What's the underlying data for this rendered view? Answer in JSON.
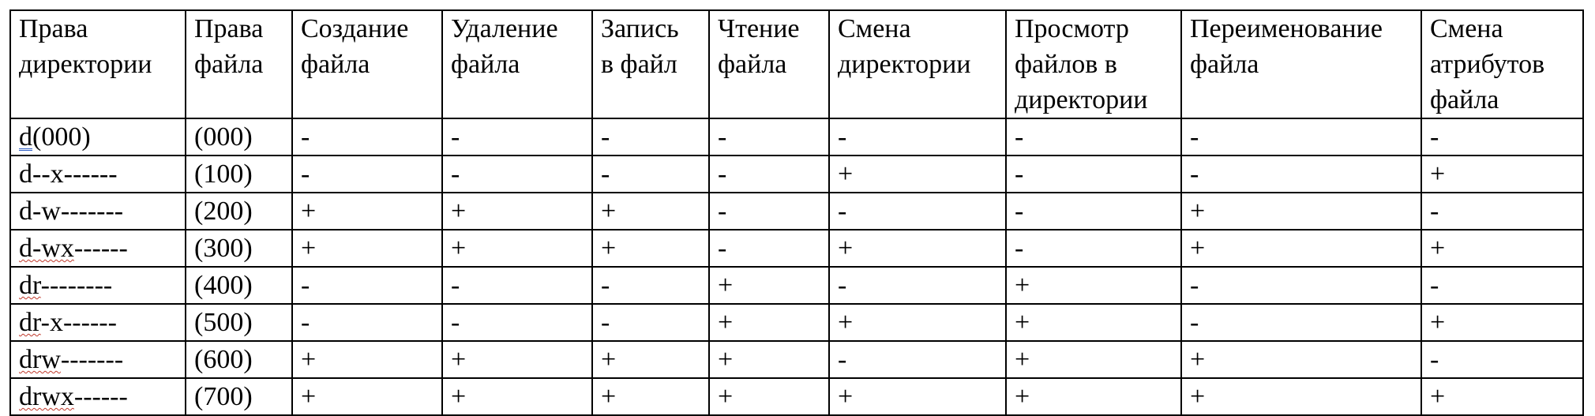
{
  "headers": [
    [
      "Права",
      "директории"
    ],
    [
      "Права",
      "файла"
    ],
    [
      "Создание",
      "файла"
    ],
    [
      "Удаление",
      "файла"
    ],
    [
      "Запись",
      "в файл"
    ],
    [
      "Чтение",
      "файла"
    ],
    [
      "Смена",
      "директории"
    ],
    [
      "Просмотр",
      "файлов в",
      "директории"
    ],
    [
      "Переименование",
      "файла"
    ],
    [
      "Смена",
      "атрибутов",
      "файла"
    ]
  ],
  "rows": [
    {
      "dir_prefix": "d",
      "dir_rest": "(000)",
      "file": "(000)",
      "ops": [
        "-",
        "-",
        "-",
        "-",
        "-",
        "-",
        "-",
        "-"
      ]
    },
    {
      "dir_prefix": "d--x------",
      "dir_rest": "",
      "file": "(100)",
      "ops": [
        "-",
        "-",
        "-",
        "-",
        "+",
        "-",
        "-",
        "+"
      ]
    },
    {
      "dir_prefix": "d-w-------",
      "dir_rest": "",
      "file": "(200)",
      "ops": [
        "+",
        "+",
        "+",
        "-",
        "-",
        "-",
        "+",
        "-"
      ]
    },
    {
      "dir_prefix": "d-wx",
      "dir_rest": "------",
      "file": "(300)",
      "ops": [
        "+",
        "+",
        "+",
        "-",
        "+",
        "-",
        "+",
        "+"
      ]
    },
    {
      "dir_prefix": "dr",
      "dir_rest": "--------",
      "file": "(400)",
      "ops": [
        "-",
        "-",
        "-",
        "+",
        "-",
        "+",
        "-",
        "-"
      ]
    },
    {
      "dir_prefix": "dr",
      "dir_rest": "-x------",
      "file": "(500)",
      "ops": [
        "-",
        "-",
        "-",
        "+",
        "+",
        "+",
        "-",
        "+"
      ]
    },
    {
      "dir_prefix": "drw",
      "dir_rest": "-------",
      "file": "(600)",
      "ops": [
        "+",
        "+",
        "+",
        "+",
        "-",
        "+",
        "+",
        "-"
      ]
    },
    {
      "dir_prefix": "drwx",
      "dir_rest": "------",
      "file": "(700)",
      "ops": [
        "+",
        "+",
        "+",
        "+",
        "+",
        "+",
        "+",
        "+"
      ]
    }
  ]
}
